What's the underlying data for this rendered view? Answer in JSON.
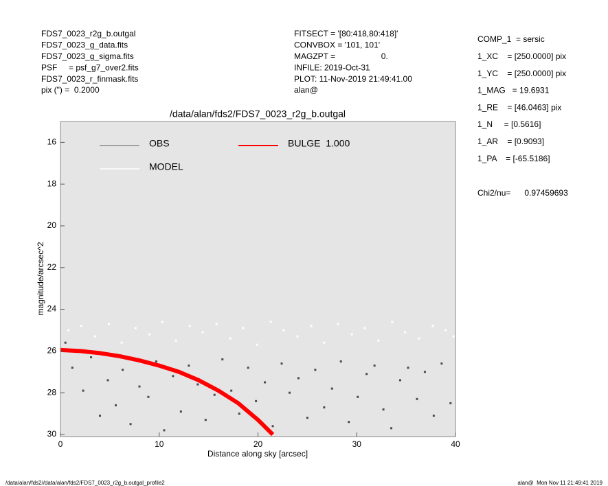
{
  "chart_data": {
    "type": "scatter",
    "title": "/data/alan/fds2/FDS7_0023_r2g_b.outgal",
    "x_label": "Distance along sky [arcsec]",
    "y_label": "magnitude/arcsec^2",
    "header_left": [
      "FDS7_0023_r2g_b.outgal",
      "FDS7_0023_g_data.fits",
      "FDS7_0023_g_sigma.fits",
      "PSF     = psf_g7_over2.fits",
      "FDS7_0023_r_finmask.fits",
      "pix (\") =  0.2000"
    ],
    "header_middle": [
      "FITSECT = '[80:418,80:418]'",
      "CONVBOX = '101, 101'",
      "MAGZPT =                    0.",
      "INFILE: 2019-Oct-31",
      "PLOT: 11-Nov-2019 21:49:41.00",
      "alan@"
    ],
    "params": [
      "COMP_1  = sersic",
      "1_XC    = [250.0000] pix",
      "1_YC    = [250.0000] pix",
      "1_MAG   = 19.6931",
      "1_RE    = [46.0463] pix",
      "1_N     = [0.5616]",
      "1_AR    = [0.9093]",
      "1_PA    = [-65.5186]"
    ],
    "chi2": "Chi2/nu=      0.97459693",
    "footer_left": "/data/alan/fds2//data/alan/fds2/FDS7_0023_r2g_b.outgal_profile2",
    "footer_right": "alan@  Mon Nov 11 21:49:41 2019",
    "xlim": [
      0,
      40
    ],
    "xticks": [
      0,
      10,
      20,
      30,
      40
    ],
    "ylim": [
      30.1,
      15
    ],
    "yticks": [
      16,
      18,
      20,
      22,
      24,
      26,
      28,
      30
    ],
    "background": "#e5e5e5",
    "series": [
      {
        "name": "MODEL",
        "color": "#ffffff",
        "x": [
          0.8,
          2.1,
          3.5,
          4.9,
          6.2,
          7.6,
          9.0,
          10.3,
          11.7,
          13.1,
          14.4,
          15.8,
          17.2,
          18.5,
          19.9,
          21.3,
          22.6,
          24.0,
          25.4,
          26.7,
          28.1,
          29.5,
          30.8,
          32.2,
          33.6,
          34.9,
          36.3,
          37.7,
          39.0,
          39.8
        ],
        "values": [
          25.0,
          24.8,
          25.3,
          24.7,
          25.6,
          24.9,
          25.2,
          24.6,
          25.5,
          24.8,
          25.1,
          24.7,
          25.4,
          24.9,
          25.7,
          24.6,
          25.0,
          25.3,
          24.8,
          25.6,
          24.7,
          25.2,
          24.9,
          25.5,
          24.6,
          25.1,
          25.4,
          24.8,
          25.0,
          25.3
        ]
      },
      {
        "name": "OBS",
        "color": "#4a4a4a",
        "x": [
          0.5,
          1.2,
          2.3,
          3.1,
          4.0,
          4.8,
          5.6,
          6.3,
          7.1,
          8.0,
          8.9,
          9.7,
          10.5,
          11.4,
          12.2,
          13.0,
          13.9,
          14.7,
          15.6,
          16.4,
          17.3,
          18.1,
          19.0,
          19.8,
          20.7,
          21.5,
          22.4,
          23.2,
          24.1,
          25.0,
          25.8,
          26.7,
          27.5,
          28.4,
          29.2,
          30.1,
          31.0,
          31.8,
          32.7,
          33.5,
          34.4,
          35.2,
          36.1,
          36.9,
          37.8,
          38.6,
          39.5
        ],
        "values": [
          25.6,
          26.8,
          27.9,
          26.3,
          29.1,
          27.4,
          28.6,
          26.9,
          29.5,
          27.7,
          28.2,
          26.5,
          29.8,
          27.2,
          28.9,
          26.7,
          27.6,
          29.3,
          28.1,
          26.4,
          27.9,
          29.0,
          26.8,
          28.4,
          27.5,
          29.6,
          26.6,
          28.0,
          27.3,
          29.2,
          26.9,
          28.7,
          27.8,
          26.5,
          29.4,
          28.2,
          27.1,
          26.7,
          28.8,
          29.7,
          27.4,
          26.8,
          28.3,
          27.0,
          29.1,
          26.6,
          28.5
        ]
      },
      {
        "name": "BULGE  1.000",
        "color": "#ff0000",
        "line": true,
        "x": [
          0,
          2,
          4,
          6,
          8,
          10,
          12,
          14,
          16,
          18,
          20,
          21.5
        ],
        "values": [
          25.95,
          26.0,
          26.1,
          26.25,
          26.45,
          26.7,
          27.0,
          27.4,
          27.9,
          28.5,
          29.3,
          30.0
        ]
      }
    ]
  }
}
